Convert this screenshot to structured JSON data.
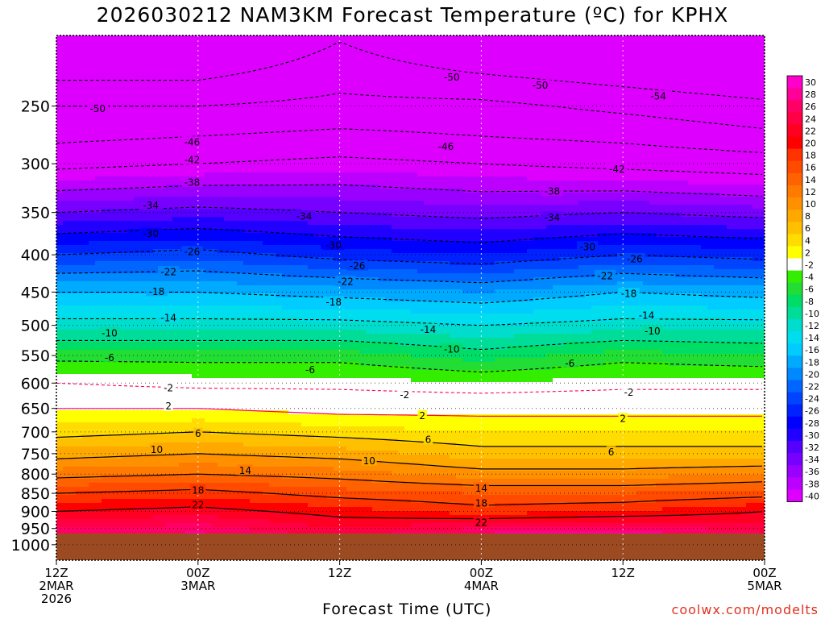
{
  "title": "2026030212 NAM3KM Forecast Temperature (ºC) for KPHX",
  "credit": "coolwx.com/modelts",
  "chart_data": {
    "type": "heatmap",
    "title": "2026030212 NAM3KM Forecast Temperature (ºC) for KPHX",
    "xlabel": "Forecast Time (UTC)",
    "ylabel": "",
    "y_axis": "pressure (hPa), inverted",
    "ylim": [
      1050,
      200
    ],
    "y_ticks": [
      250,
      300,
      350,
      400,
      450,
      500,
      550,
      600,
      650,
      700,
      750,
      800,
      850,
      900,
      950,
      1000
    ],
    "x_ticks": [
      {
        "hour": 0,
        "lines": [
          "12Z",
          "2MAR",
          "2026"
        ]
      },
      {
        "hour": 12,
        "lines": [
          "00Z",
          "3MAR"
        ]
      },
      {
        "hour": 24,
        "lines": [
          "12Z"
        ]
      },
      {
        "hour": 36,
        "lines": [
          "00Z",
          "4MAR"
        ]
      },
      {
        "hour": 48,
        "lines": [
          "12Z"
        ]
      },
      {
        "hour": 60,
        "lines": [
          "00Z",
          "5MAR"
        ]
      }
    ],
    "xlim": [
      0,
      60
    ],
    "surface_pressure": 965,
    "levels": [
      {
        "hpa": 240,
        "t": [
          -52,
          -52,
          -50,
          -51,
          -53,
          -55
        ]
      },
      {
        "hpa": 250,
        "t": [
          -50,
          -50,
          -49,
          -49,
          -51,
          -53
        ]
      },
      {
        "hpa": 275,
        "t": [
          -47,
          -46,
          -45,
          -46,
          -47,
          -49
        ]
      },
      {
        "hpa": 300,
        "t": [
          -43,
          -42,
          -41,
          -42,
          -43,
          -44
        ]
      },
      {
        "hpa": 350,
        "t": [
          -34,
          -33,
          -34,
          -35,
          -34,
          -35
        ]
      },
      {
        "hpa": 400,
        "t": [
          -26,
          -25,
          -27,
          -28,
          -26,
          -27
        ]
      },
      {
        "hpa": 450,
        "t": [
          -18,
          -18,
          -19,
          -20,
          -18,
          -19
        ]
      },
      {
        "hpa": 500,
        "t": [
          -13,
          -13,
          -13,
          -14,
          -13,
          -13
        ]
      },
      {
        "hpa": 550,
        "t": [
          -7,
          -7,
          -7,
          -9,
          -7,
          -8
        ]
      },
      {
        "hpa": 600,
        "t": [
          -2,
          -3,
          -3,
          -4,
          -3,
          -3
        ]
      },
      {
        "hpa": 650,
        "t": [
          2,
          2,
          1,
          1,
          1,
          1
        ]
      },
      {
        "hpa": 700,
        "t": [
          5,
          6,
          5,
          4,
          4,
          4
        ]
      },
      {
        "hpa": 750,
        "t": [
          9,
          10,
          9,
          7,
          7,
          7
        ]
      },
      {
        "hpa": 800,
        "t": [
          13,
          14,
          13,
          11,
          11,
          12
        ]
      },
      {
        "hpa": 850,
        "t": [
          18,
          19,
          17,
          16,
          16,
          17
        ]
      },
      {
        "hpa": 900,
        "t": [
          22,
          23,
          21,
          19,
          20,
          22
        ]
      },
      {
        "hpa": 950,
        "t": [
          26,
          27,
          24,
          26,
          27,
          25
        ]
      }
    ],
    "contour_labels": [
      {
        "text": "-50",
        "hour": 3.5,
        "hpa": 252
      },
      {
        "text": "-50",
        "hour": 33.5,
        "hpa": 228
      },
      {
        "text": "-50",
        "hour": 41,
        "hpa": 234
      },
      {
        "text": "-54",
        "hour": 51,
        "hpa": 242
      },
      {
        "text": "-46",
        "hour": 11.5,
        "hpa": 280
      },
      {
        "text": "-46",
        "hour": 33,
        "hpa": 284
      },
      {
        "text": "-42",
        "hour": 11.5,
        "hpa": 296
      },
      {
        "text": "-42",
        "hour": 47.5,
        "hpa": 305
      },
      {
        "text": "-38",
        "hour": 11.5,
        "hpa": 318
      },
      {
        "text": "-38",
        "hour": 42,
        "hpa": 327
      },
      {
        "text": "-34",
        "hour": 8,
        "hpa": 342
      },
      {
        "text": "-34",
        "hour": 21,
        "hpa": 354
      },
      {
        "text": "-34",
        "hour": 42,
        "hpa": 355
      },
      {
        "text": "-30",
        "hour": 8,
        "hpa": 374
      },
      {
        "text": "-30",
        "hour": 23.5,
        "hpa": 388
      },
      {
        "text": "-30",
        "hour": 45,
        "hpa": 390
      },
      {
        "text": "-26",
        "hour": 11.5,
        "hpa": 396
      },
      {
        "text": "-26",
        "hour": 25.5,
        "hpa": 414
      },
      {
        "text": "-26",
        "hour": 49,
        "hpa": 405
      },
      {
        "text": "-22",
        "hour": 9.5,
        "hpa": 422
      },
      {
        "text": "-22",
        "hour": 24.5,
        "hpa": 435
      },
      {
        "text": "-22",
        "hour": 46.5,
        "hpa": 427
      },
      {
        "text": "-18",
        "hour": 8.5,
        "hpa": 449
      },
      {
        "text": "-18",
        "hour": 23.5,
        "hpa": 464
      },
      {
        "text": "-18",
        "hour": 48.5,
        "hpa": 452
      },
      {
        "text": "-14",
        "hour": 9.5,
        "hpa": 488
      },
      {
        "text": "-14",
        "hour": 31.5,
        "hpa": 506
      },
      {
        "text": "-14",
        "hour": 50,
        "hpa": 484
      },
      {
        "text": "-10",
        "hour": 4.5,
        "hpa": 512
      },
      {
        "text": "-10",
        "hour": 33.5,
        "hpa": 539
      },
      {
        "text": "-10",
        "hour": 50.5,
        "hpa": 509
      },
      {
        "text": "-6",
        "hour": 4.5,
        "hpa": 553
      },
      {
        "text": "-6",
        "hour": 21.5,
        "hpa": 575
      },
      {
        "text": "-6",
        "hour": 43.5,
        "hpa": 563
      },
      {
        "text": "-2",
        "hour": 9.5,
        "hpa": 609
      },
      {
        "text": "-2",
        "hour": 29.5,
        "hpa": 622
      },
      {
        "text": "-2",
        "hour": 48.5,
        "hpa": 617
      },
      {
        "text": "2",
        "hour": 9.5,
        "hpa": 645
      },
      {
        "text": "2",
        "hour": 31,
        "hpa": 665
      },
      {
        "text": "2",
        "hour": 48,
        "hpa": 671
      },
      {
        "text": "6",
        "hour": 12,
        "hpa": 703
      },
      {
        "text": "6",
        "hour": 31.5,
        "hpa": 717
      },
      {
        "text": "6",
        "hour": 47,
        "hpa": 745
      },
      {
        "text": "10",
        "hour": 8.5,
        "hpa": 740
      },
      {
        "text": "10",
        "hour": 26.5,
        "hpa": 767
      },
      {
        "text": "14",
        "hour": 16,
        "hpa": 790
      },
      {
        "text": "14",
        "hour": 36,
        "hpa": 836
      },
      {
        "text": "18",
        "hour": 12,
        "hpa": 841
      },
      {
        "text": "18",
        "hour": 36,
        "hpa": 876
      },
      {
        "text": "22",
        "hour": 12,
        "hpa": 881
      },
      {
        "text": "22",
        "hour": 36,
        "hpa": 931
      }
    ],
    "colorbar": {
      "labels": [
        "30",
        "28",
        "26",
        "24",
        "22",
        "20",
        "18",
        "16",
        "14",
        "12",
        "10",
        "8",
        "6",
        "4",
        "2",
        "-2",
        "-4",
        "-6",
        "-8",
        "-10",
        "-12",
        "-14",
        "-16",
        "-18",
        "-20",
        "-22",
        "-24",
        "-26",
        "-28",
        "-30",
        "-32",
        "-34",
        "-36",
        "-38",
        "-40"
      ],
      "colors": [
        "#ff00cc",
        "#ff0099",
        "#ff0066",
        "#ff0044",
        "#ff0022",
        "#ff0000",
        "#ff3300",
        "#ff4a00",
        "#ff6200",
        "#ff7a00",
        "#ff9000",
        "#ffa800",
        "#ffc000",
        "#ffdd00",
        "#ffff00",
        "#ffffff",
        "#33ee00",
        "#22dd33",
        "#00dd66",
        "#00dd99",
        "#00ddcc",
        "#00ddee",
        "#00ccff",
        "#00aaff",
        "#0088ff",
        "#0066ff",
        "#0044ff",
        "#0022ff",
        "#0000ff",
        "#2200ff",
        "#5500ff",
        "#7700ff",
        "#9900ff",
        "#bb00ff",
        "#dd00ff"
      ]
    },
    "grid": true
  }
}
